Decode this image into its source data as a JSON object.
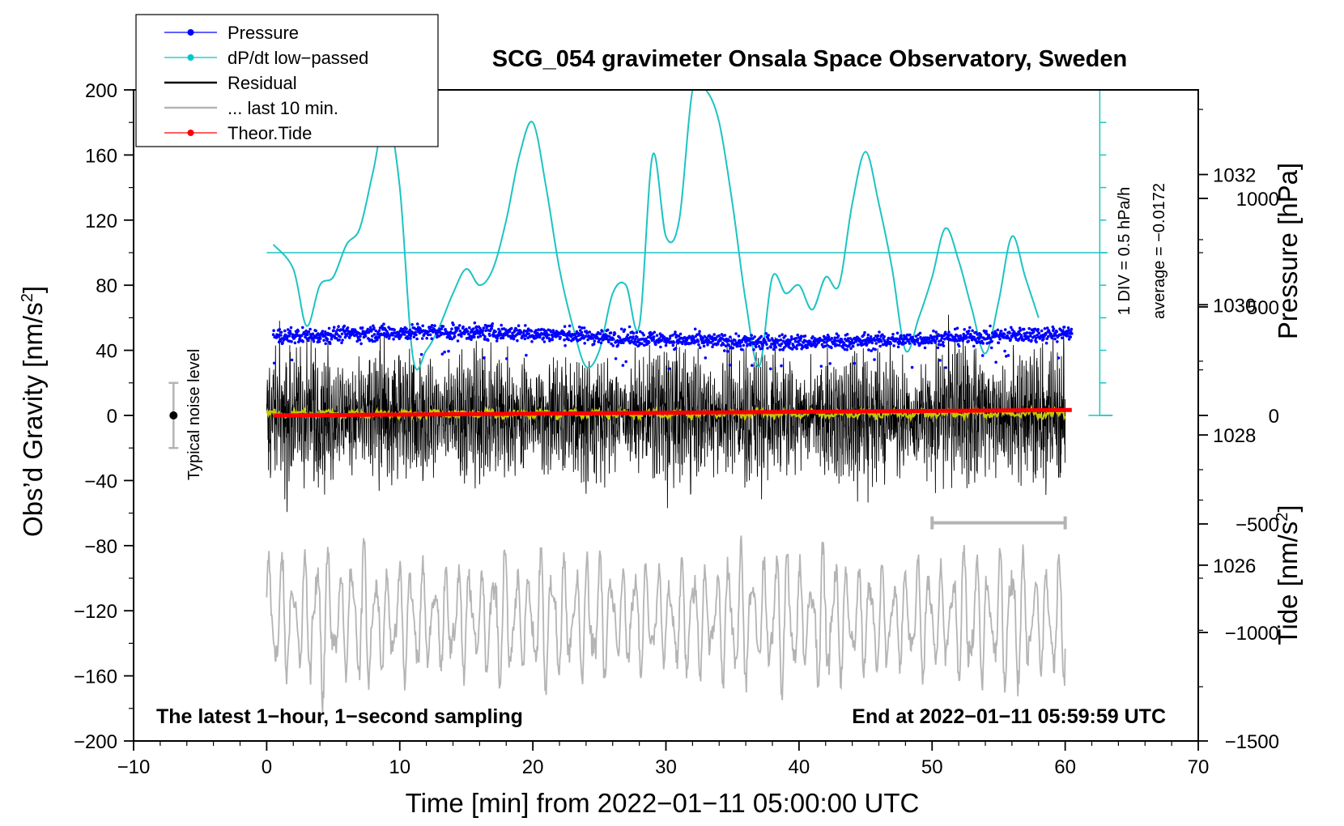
{
  "chart_data": {
    "type": "line",
    "title": "SCG_054 gravimeter Onsala Space Observatory, Sweden",
    "xlabel": "Time [min] from 2022−01−11 05:00:00 UTC",
    "ylabel_main": "Obs’d Gravity [nm/s",
    "ylabel_main_sup": "2",
    "ylabel_main_end": "]",
    "ylabel_pressure": "Pressure [hPa]",
    "ylabel_tide": "Tide [nm/s",
    "ylabel_tide_sup": "2",
    "ylabel_tide_end": "]",
    "xlim": [
      -10,
      70
    ],
    "ylim": [
      -200,
      200
    ],
    "x_ticks": [
      -10,
      0,
      10,
      20,
      30,
      40,
      50,
      60,
      70
    ],
    "x_tick_labels": [
      "−10",
      "0",
      "10",
      "20",
      "30",
      "40",
      "50",
      "60",
      "70"
    ],
    "y_ticks": [
      -200,
      -160,
      -120,
      -80,
      -40,
      0,
      40,
      80,
      120,
      160,
      200
    ],
    "y_tick_labels": [
      "−200",
      "−160",
      "−120",
      "−80",
      "−40",
      "0",
      "40",
      "80",
      "120",
      "160",
      "200"
    ],
    "pressure_axis": {
      "range": [
        1023.3,
        1033.3
      ],
      "ticks": [
        1026,
        1028,
        1030,
        1032
      ],
      "tick_labels": [
        "1026",
        "1028",
        "1030",
        "1032"
      ]
    },
    "tide_axis": {
      "range": [
        -1500,
        1500
      ],
      "ticks": [
        -1500,
        -1000,
        -500,
        0,
        500,
        1000
      ],
      "tick_labels": [
        "−1500",
        "−1000",
        "−500",
        "0",
        "500",
        "1000"
      ]
    },
    "legend": {
      "position": "top-left",
      "entries": [
        {
          "label": "Pressure",
          "color": "#0000ff",
          "style": "line-dot"
        },
        {
          "label": "dP/dt low−passed",
          "color": "#00c8c8",
          "style": "line-dot"
        },
        {
          "label": "Residual",
          "color": "#000000",
          "style": "line"
        },
        {
          "label": "... last 10 min.",
          "color": "#b4b4b4",
          "style": "line"
        },
        {
          "label": "Theor.Tide",
          "color": "#ff0000",
          "style": "line-dot"
        }
      ]
    },
    "annotations": {
      "bottom_left": "The latest 1−hour, 1−second sampling",
      "bottom_right": "End at 2022−01−11 05:59:59 UTC",
      "noise_label": "Typical noise level",
      "dpdt_scale": "1 DIV = 0.5 hPa/h",
      "dpdt_average": "average = −0.0172"
    },
    "series": [
      {
        "name": "Pressure",
        "color": "#0000ff",
        "axis": "pressure",
        "x_range": [
          0.5,
          60.5
        ],
        "level_hPa": 1029.5,
        "noise_hPa": 0.12
      },
      {
        "name": "dP/dt low−passed",
        "color": "#1ec3c3",
        "axis": "main_display_units",
        "x": [
          0.5,
          2,
          3,
          4,
          5,
          6,
          7,
          8,
          9,
          10,
          11,
          12,
          13,
          14,
          15,
          16,
          17,
          18,
          19,
          20,
          21,
          22,
          23,
          24,
          25,
          26,
          27,
          28,
          29,
          30,
          31,
          32,
          33,
          34,
          35,
          36,
          37,
          38,
          39,
          40,
          41,
          42,
          43,
          44,
          45,
          46,
          47,
          48,
          49,
          50,
          51,
          52,
          53,
          54,
          55,
          56,
          57,
          58
        ],
        "y": [
          105,
          90,
          55,
          80,
          85,
          105,
          115,
          150,
          185,
          140,
          35,
          40,
          55,
          75,
          90,
          80,
          90,
          120,
          160,
          180,
          140,
          90,
          55,
          30,
          40,
          75,
          80,
          55,
          160,
          110,
          120,
          200,
          200,
          180,
          130,
          70,
          30,
          85,
          75,
          80,
          65,
          85,
          80,
          130,
          162,
          130,
          90,
          40,
          60,
          85,
          115,
          95,
          65,
          38,
          70,
          110,
          85,
          60
        ]
      },
      {
        "name": "Residual",
        "color": "#000000",
        "axis": "main",
        "x_range": [
          0,
          60
        ],
        "amplitude_nm_s2": 40
      },
      {
        "name": "Residual smoothed",
        "color": "#c8c800",
        "axis": "main",
        "x_range": [
          0,
          60
        ],
        "level": 1
      },
      {
        "name": "... last 10 min.",
        "color": "#b4b4b4",
        "axis": "main",
        "x_range": [
          0,
          60
        ],
        "center": -125,
        "amplitude": 45
      },
      {
        "name": "Theor.Tide",
        "color": "#ff0000",
        "axis": "tide",
        "x": [
          0.5,
          60.5
        ],
        "y": [
          0,
          25
        ]
      }
    ],
    "dpdt_reference_value": 100,
    "noise_bar": {
      "x": -7,
      "center": 0,
      "half_range": 20
    },
    "last10_bar": {
      "x_start": 50,
      "x_end": 60,
      "y": -66
    }
  }
}
